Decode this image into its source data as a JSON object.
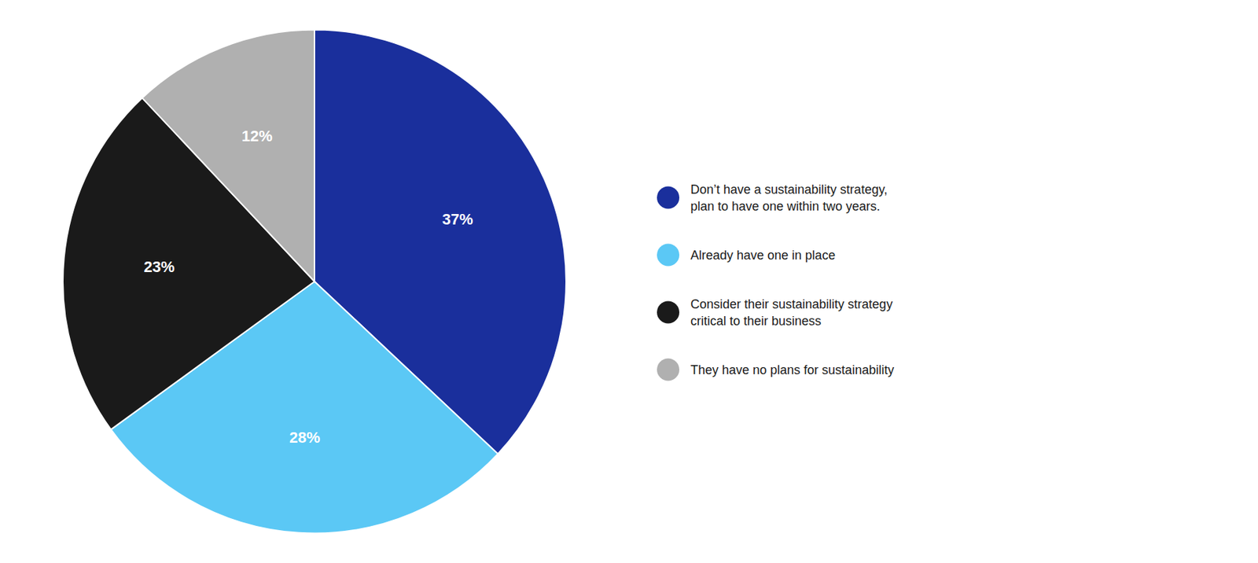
{
  "chart_data": {
    "type": "pie",
    "categories": [
      "Don’t have a sustainability strategy,\nplan to have one within two years.",
      "Already have one in place",
      "Consider their sustainability strategy\ncritical to their business",
      "They have no plans for sustainability"
    ],
    "values": [
      37,
      28,
      23,
      12
    ],
    "value_labels": [
      "37%",
      "28%",
      "23%",
      "12%"
    ],
    "colors": [
      "#1a2f9c",
      "#5bc8f5",
      "#1a1a1a",
      "#b0b0b0"
    ],
    "data_labels": true,
    "legend": "right"
  }
}
